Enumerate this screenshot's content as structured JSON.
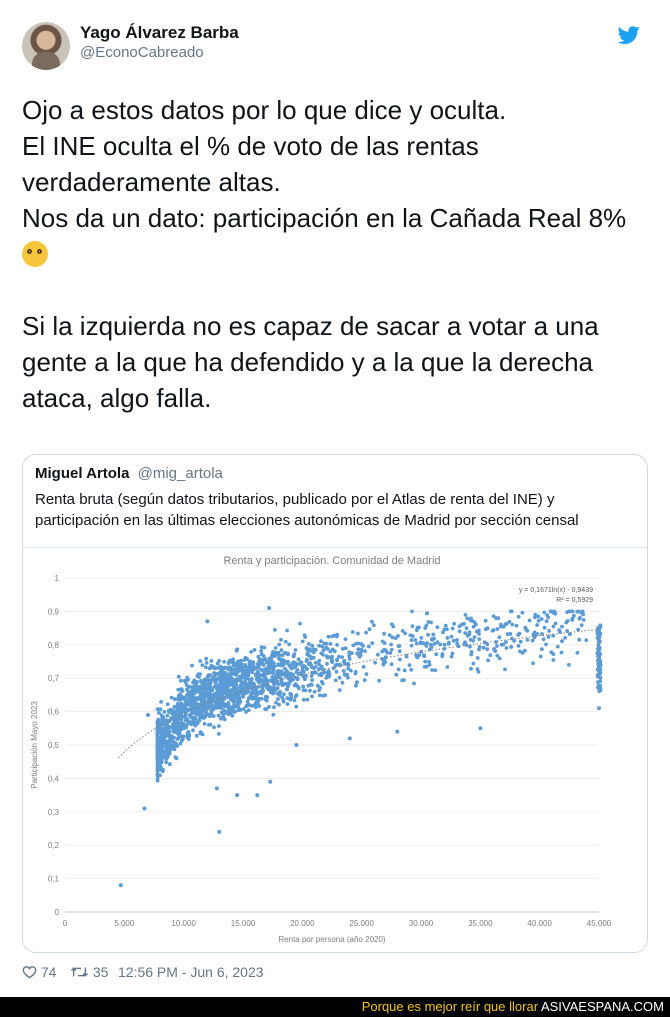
{
  "author": {
    "name": "Yago Álvarez Barba",
    "handle": "@EconoCabreado"
  },
  "tweet": {
    "lines1": [
      "Ojo a estos datos por lo que dice y oculta.",
      "El INE oculta el % de voto de las rentas",
      "verdaderamente altas.",
      "Nos da un dato: participación en la Cañada Real 8%"
    ],
    "lines2": [
      "Si la izquierda no es capaz de sacar a votar a una",
      "gente a la que ha defendido y a la que la derecha",
      "ataca, algo falla."
    ]
  },
  "quote": {
    "name": "Miguel Artola",
    "handle": "@mig_artola",
    "text": "Renta bruta (según datos tributarios, publicado por el Atlas de renta del INE) y participación en las últimas elecciones autonómicas de Madrid por sección censal"
  },
  "chart_data": {
    "type": "scatter",
    "title": "Renta y participación. Comunidad de Madrid",
    "xlabel": "Renta por persona (año 2020)",
    "ylabel": "Participación Mayo 2023",
    "xlim": [
      0,
      45000
    ],
    "ylim": [
      0,
      1
    ],
    "x_ticks": [
      "0",
      "5.000",
      "10.000",
      "15.000",
      "20.000",
      "25.000",
      "30.000",
      "35.000",
      "40.000",
      "45.000"
    ],
    "y_ticks": [
      "0",
      "0,1",
      "0,2",
      "0,3",
      "0,4",
      "0,5",
      "0,6",
      "0,7",
      "0,8",
      "0,9",
      "1"
    ],
    "trendline": {
      "equation": "y = 0,1671ln(x) - 0,9439",
      "r2": "R² = 0,5929",
      "a": 0.1671,
      "b": -0.9439
    },
    "point_color": "#5b9bd5",
    "outliers": [
      {
        "x": 4700,
        "y": 0.08
      },
      {
        "x": 6700,
        "y": 0.31
      },
      {
        "x": 7000,
        "y": 0.59
      },
      {
        "x": 13000,
        "y": 0.24
      },
      {
        "x": 12800,
        "y": 0.37
      },
      {
        "x": 14500,
        "y": 0.35
      },
      {
        "x": 16200,
        "y": 0.35
      },
      {
        "x": 17300,
        "y": 0.39
      },
      {
        "x": 28000,
        "y": 0.54
      },
      {
        "x": 35000,
        "y": 0.55
      },
      {
        "x": 45000,
        "y": 0.61
      },
      {
        "x": 17200,
        "y": 0.91
      },
      {
        "x": 12000,
        "y": 0.87
      },
      {
        "x": 19500,
        "y": 0.5
      },
      {
        "x": 24000,
        "y": 0.52
      }
    ]
  },
  "footer": {
    "likes": "74",
    "retweets": "35",
    "timestamp": "12:56 PM - Jun 6, 2023"
  },
  "banner": {
    "text": "Porque es mejor reír que llorar",
    "brand": "ASIVAESPANA.COM"
  }
}
